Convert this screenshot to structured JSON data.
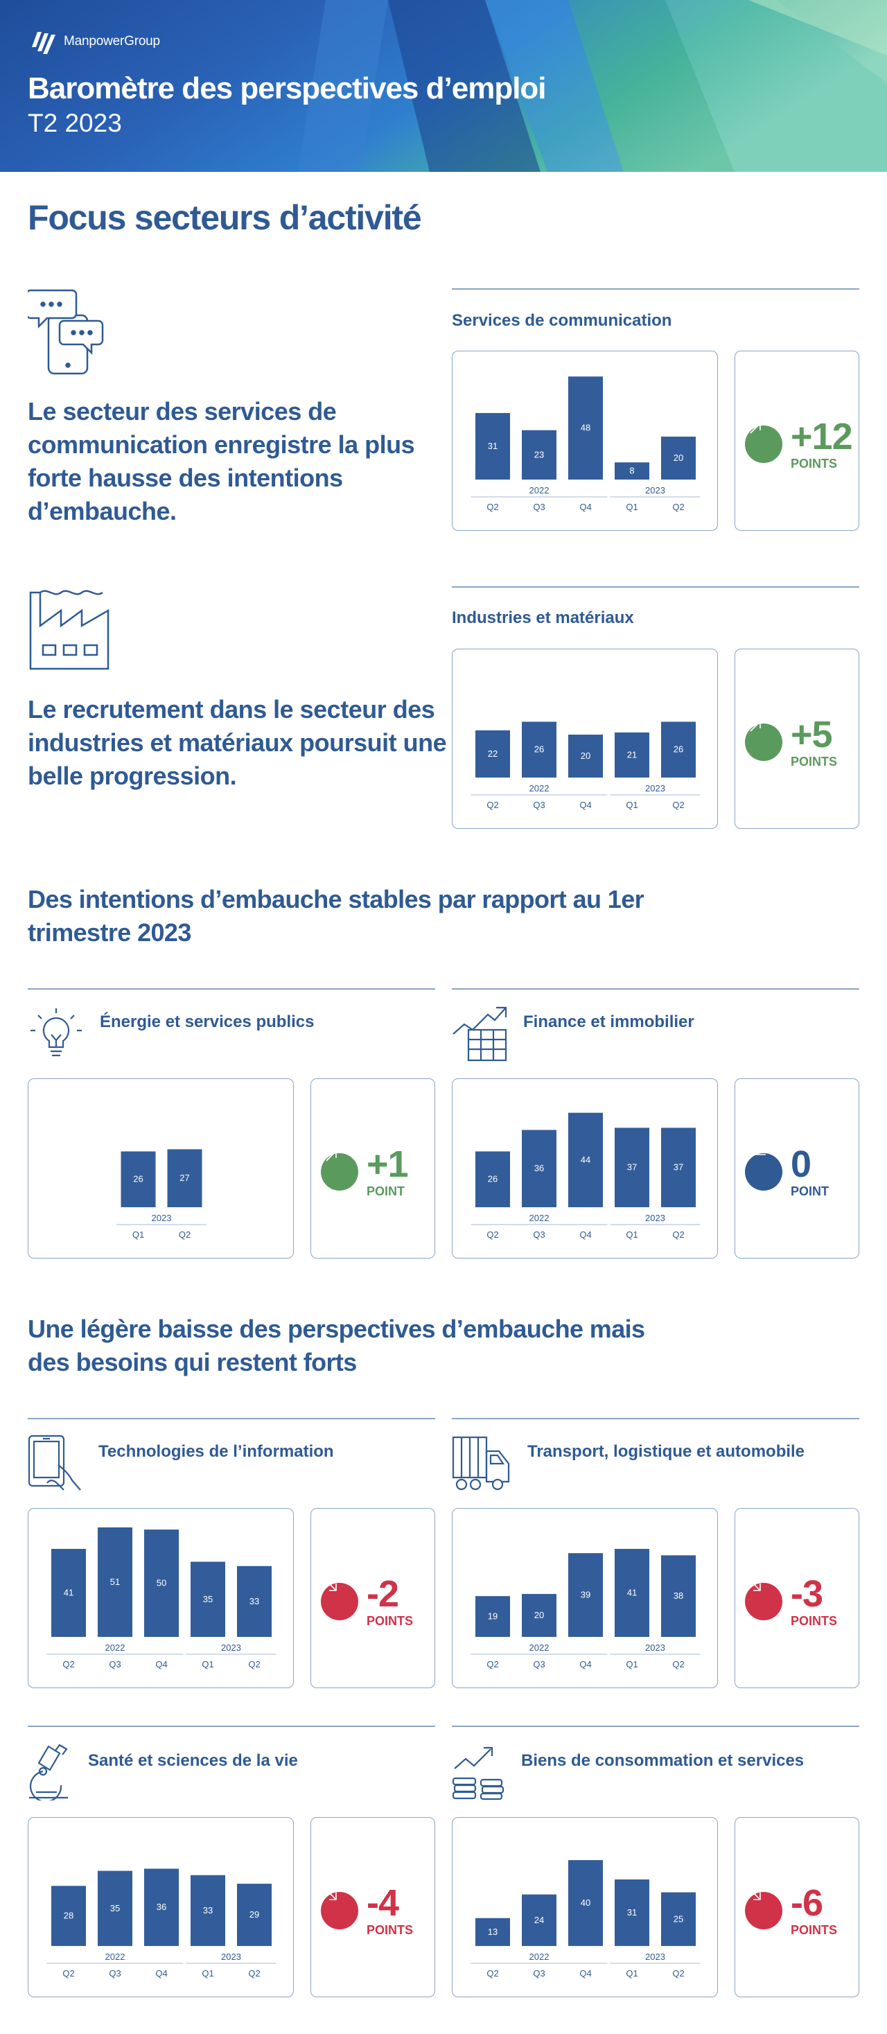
{
  "header": {
    "logo_text": "ManpowerGroup",
    "title": "Baromètre des perspectives d’emploi",
    "subtitle": "T2 2023"
  },
  "colors": {
    "primary": "#2f5a94",
    "bar": "#325d9a",
    "up": "#5b9a5d",
    "down": "#d03248",
    "neutral": "#2f5a94",
    "border": "#8ba4c8"
  },
  "focus": {
    "title": "Focus secteurs d’activité",
    "lead_communication": "Le secteur des services de communication enregistre la plus forte hausse des intentions d’embauche.",
    "lead_industries": "Le recrutement dans le secteur des industries et matériaux poursuit une belle progression."
  },
  "section_stable": {
    "title": "Des intentions d’embauche stables par rapport au 1er trimestre 2023"
  },
  "section_down": {
    "title": "Une légère baisse des perspectives d’embauche mais des besoins qui restent forts"
  },
  "sectors": {
    "communication": {
      "title": "Services de communication",
      "change_value": "+12",
      "change_unit": "POINTS",
      "trend": "up",
      "icon": "chat-phone-icon"
    },
    "industries": {
      "title": "Industries et matériaux",
      "change_value": "+5",
      "change_unit": "POINTS",
      "trend": "up",
      "icon": "factory-icon"
    },
    "energie": {
      "title": "Énergie et services publics",
      "change_value": "+1",
      "change_unit": "POINT",
      "trend": "up",
      "icon": "lightbulb-icon"
    },
    "finance": {
      "title": "Finance et immobilier",
      "change_value": "0",
      "change_unit": "POINT",
      "trend": "neutral",
      "icon": "chart-table-icon"
    },
    "tech": {
      "title": "Technologies de l’information",
      "change_value": "-2",
      "change_unit": "POINTS",
      "trend": "down",
      "icon": "tablet-hand-icon"
    },
    "transport": {
      "title": "Transport, logistique et automobile",
      "change_value": "-3",
      "change_unit": "POINTS",
      "trend": "down",
      "icon": "truck-icon"
    },
    "sante": {
      "title": "Santé et sciences de la vie",
      "change_value": "-4",
      "change_unit": "POINTS",
      "trend": "down",
      "icon": "microscope-icon"
    },
    "biens": {
      "title": "Biens de consommation et services",
      "change_value": "-6",
      "change_unit": "POINTS",
      "trend": "down",
      "icon": "coins-growth-icon"
    }
  },
  "chart_data": [
    {
      "id": "communication",
      "type": "bar",
      "title": "Services de communication",
      "categories": [
        "Q2",
        "Q3",
        "Q4",
        "Q1",
        "Q2"
      ],
      "year_groups": [
        {
          "label": "2022",
          "span": 3
        },
        {
          "label": "2023",
          "span": 2
        }
      ],
      "values": [
        31,
        23,
        48,
        8,
        20
      ],
      "ylim": [
        0,
        50
      ],
      "grid": false
    },
    {
      "id": "industries",
      "type": "bar",
      "title": "Industries et matériaux",
      "categories": [
        "Q2",
        "Q3",
        "Q4",
        "Q1",
        "Q2"
      ],
      "year_groups": [
        {
          "label": "2022",
          "span": 3
        },
        {
          "label": "2023",
          "span": 2
        }
      ],
      "values": [
        22,
        26,
        20,
        21,
        26
      ],
      "ylim": [
        0,
        50
      ],
      "grid": false
    },
    {
      "id": "energie",
      "type": "bar",
      "title": "Énergie et services publics",
      "categories": [
        "Q1",
        "Q2"
      ],
      "year_groups": [
        {
          "label": "2023",
          "span": 2
        }
      ],
      "values": [
        26,
        27
      ],
      "ylim": [
        0,
        50
      ],
      "grid": false
    },
    {
      "id": "finance",
      "type": "bar",
      "title": "Finance et immobilier",
      "categories": [
        "Q2",
        "Q3",
        "Q4",
        "Q1",
        "Q2"
      ],
      "year_groups": [
        {
          "label": "2022",
          "span": 3
        },
        {
          "label": "2023",
          "span": 2
        }
      ],
      "values": [
        26,
        36,
        44,
        37,
        37
      ],
      "ylim": [
        0,
        50
      ],
      "grid": false
    },
    {
      "id": "tech",
      "type": "bar",
      "title": "Technologies de l’information",
      "categories": [
        "Q2",
        "Q3",
        "Q4",
        "Q1",
        "Q2"
      ],
      "year_groups": [
        {
          "label": "2022",
          "span": 3
        },
        {
          "label": "2023",
          "span": 2
        }
      ],
      "values": [
        41,
        51,
        50,
        35,
        33
      ],
      "ylim": [
        0,
        55
      ],
      "grid": false
    },
    {
      "id": "transport",
      "type": "bar",
      "title": "Transport, logistique et automobile",
      "categories": [
        "Q2",
        "Q3",
        "Q4",
        "Q1",
        "Q2"
      ],
      "year_groups": [
        {
          "label": "2022",
          "span": 3
        },
        {
          "label": "2023",
          "span": 2
        }
      ],
      "values": [
        19,
        20,
        39,
        41,
        38
      ],
      "ylim": [
        0,
        55
      ],
      "grid": false
    },
    {
      "id": "sante",
      "type": "bar",
      "title": "Santé et sciences de la vie",
      "categories": [
        "Q2",
        "Q3",
        "Q4",
        "Q1",
        "Q2"
      ],
      "year_groups": [
        {
          "label": "2022",
          "span": 3
        },
        {
          "label": "2023",
          "span": 2
        }
      ],
      "values": [
        28,
        35,
        36,
        33,
        29
      ],
      "ylim": [
        0,
        55
      ],
      "grid": false
    },
    {
      "id": "biens",
      "type": "bar",
      "title": "Biens de consommation et services",
      "categories": [
        "Q2",
        "Q3",
        "Q4",
        "Q1",
        "Q2"
      ],
      "year_groups": [
        {
          "label": "2022",
          "span": 3
        },
        {
          "label": "2023",
          "span": 2
        }
      ],
      "values": [
        13,
        24,
        40,
        31,
        25
      ],
      "ylim": [
        0,
        55
      ],
      "grid": false
    }
  ]
}
